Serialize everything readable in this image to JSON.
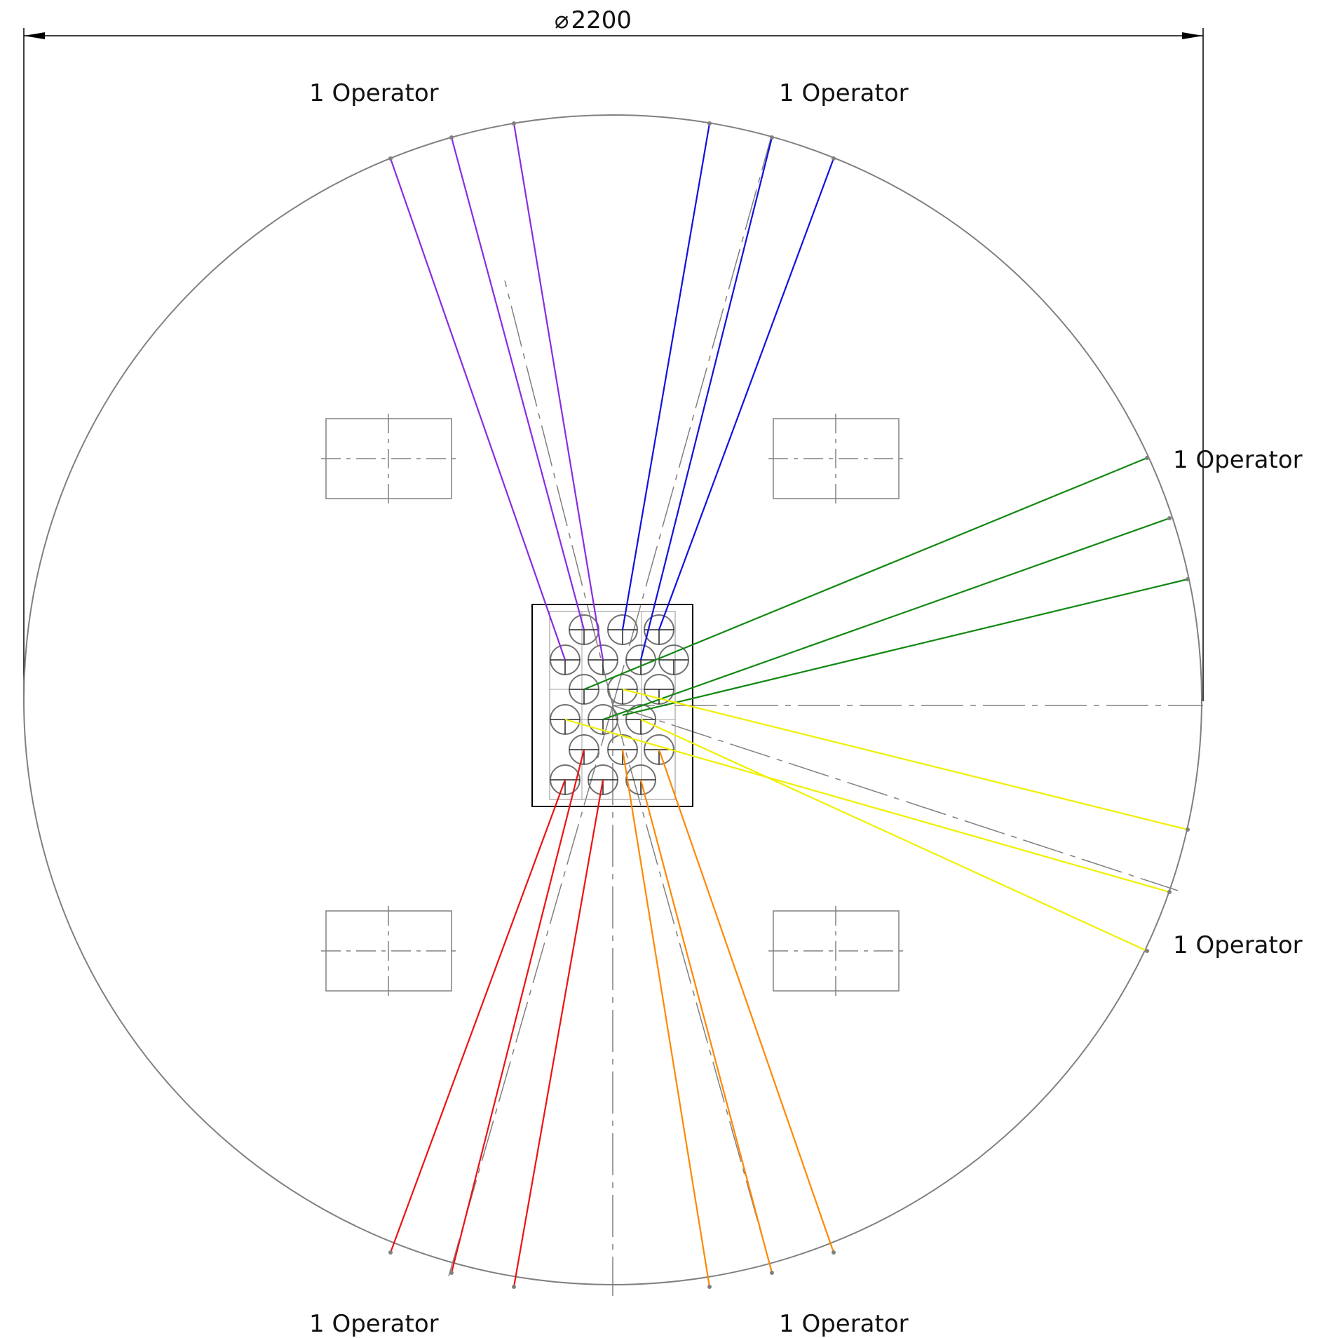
{
  "dimension": {
    "symbol": "⌀",
    "value": "2200"
  },
  "operators": [
    {
      "id": "top-left",
      "label": "1 Operator",
      "color": "#8a2be2"
    },
    {
      "id": "top-right",
      "label": "1 Operator",
      "color": "#1010e0"
    },
    {
      "id": "right-upper",
      "label": "1 Operator",
      "color": "#118811"
    },
    {
      "id": "right-lower",
      "label": "1 Operator",
      "color": "#f0f000"
    },
    {
      "id": "bottom-left",
      "label": "1 Operator",
      "color": "#ee1111"
    },
    {
      "id": "bottom-right",
      "label": "1 Operator",
      "color": "#ff8800"
    }
  ],
  "colors": {
    "outline": "#808080",
    "frame": "#000000",
    "dimension": "#000000"
  }
}
